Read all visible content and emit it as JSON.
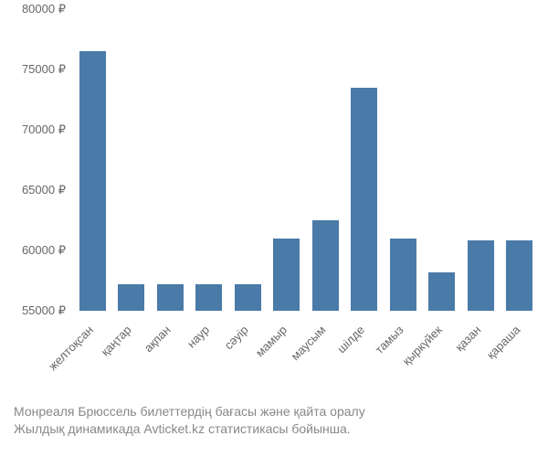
{
  "chart": {
    "type": "bar",
    "ylim": [
      55000,
      80000
    ],
    "ytick_step": 5000,
    "currency_symbol": "₽",
    "bar_color": "#4a7aa8",
    "text_color": "#666666",
    "caption_color": "#888888",
    "tick_fontsize": 13,
    "caption_fontsize": 14,
    "bar_width_ratio": 0.68,
    "categories": [
      "желтоқсан",
      "қаңтар",
      "ақпан",
      "наур",
      "сәуір",
      "мамыр",
      "маусым",
      "шілде",
      "тамыз",
      "қыркүйек",
      "қазан",
      "қараша"
    ],
    "values": [
      76500,
      57200,
      57200,
      57200,
      57200,
      61000,
      62500,
      73500,
      61000,
      58200,
      60800,
      60800
    ]
  },
  "caption": {
    "line1": "Монреаля Брюссель билеттердің бағасы және қайта оралу",
    "line2": "Жылдық динамикада Avticket.kz статистикасы бойынша."
  }
}
